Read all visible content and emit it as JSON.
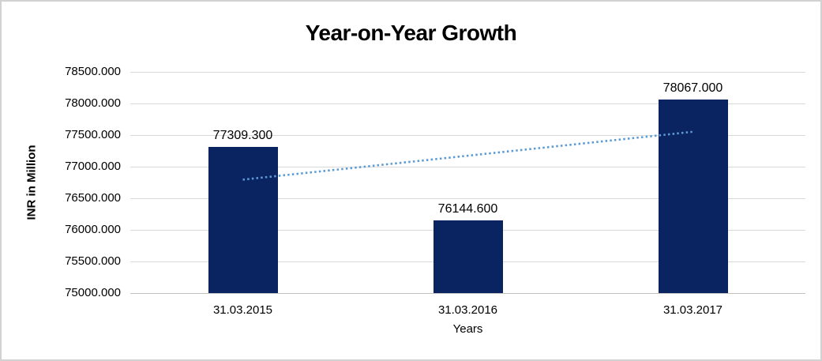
{
  "chart_data": {
    "type": "bar",
    "title": "Year-on-Year Growth",
    "xlabel": "Years",
    "ylabel": "INR in Million",
    "categories": [
      "31.03.2015",
      "31.03.2016",
      "31.03.2017"
    ],
    "values": [
      77309.3,
      76144.6,
      78067.0
    ],
    "data_labels": [
      "77309.300",
      "76144.600",
      "78067.000"
    ],
    "ylim": [
      75000,
      78500
    ],
    "y_tick_step": 500,
    "y_tick_values": [
      78500,
      78000,
      77500,
      77000,
      76500,
      76000,
      75500,
      75000
    ],
    "y_tick_labels": [
      "78500.000",
      "78000.000",
      "77500.000",
      "77000.000",
      "76500.000",
      "76000.000",
      "75500.000",
      "75000.000"
    ],
    "grid": true,
    "legend_position": "none",
    "trendline": {
      "type": "linear",
      "style": "dotted"
    },
    "colors": {
      "bar": "#0a2361",
      "trendline": "#5b9bd5",
      "gridline": "#d9d9d9",
      "axis_line": "#c2c2c2",
      "text": "#000000",
      "frame_border": "#d2d2d2",
      "background": "#ffffff"
    }
  }
}
